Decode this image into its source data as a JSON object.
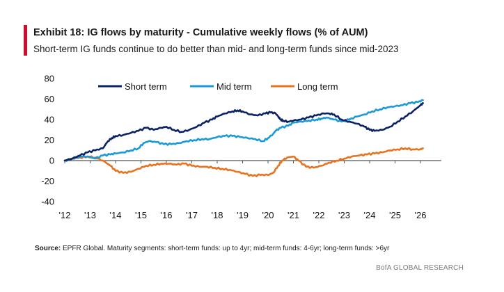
{
  "header": {
    "title": "Exhibit 18: IG flows by maturity - Cumulative weekly flows (% of AUM)",
    "subtitle": "Short-term IG funds continue to do better than mid- and long-term funds since mid-2023"
  },
  "source": {
    "label": "Source:",
    "text": " EPFR Global. Maturity segments: short-term funds: up to 4yr; mid-term funds: 4-6yr; long-term funds: >6yr"
  },
  "footer": {
    "brand": "BofA GLOBAL RESEARCH"
  },
  "colors": {
    "accent": "#c8102e",
    "short": "#0b2265",
    "mid": "#1a9ad6",
    "long": "#e8731e",
    "axis": "#555555"
  },
  "chart_data": {
    "type": "line",
    "title": "Exhibit 18: IG flows by maturity - Cumulative weekly flows (% of AUM)",
    "xlabel": "",
    "ylabel": "",
    "xlim": [
      2012,
      2026.2
    ],
    "ylim": [
      -40,
      80
    ],
    "yticks": [
      80,
      60,
      40,
      20,
      0,
      -20,
      -40
    ],
    "ytick_labels": [
      "80",
      "60",
      "40",
      "20",
      "0",
      "-20",
      "-40"
    ],
    "xticks": [
      2012,
      2013,
      2014,
      2015,
      2016,
      2017,
      2018,
      2019,
      2020,
      2021,
      2022,
      2023,
      2024,
      2025,
      2026
    ],
    "xtick_labels": [
      "'12",
      "'13",
      "'14",
      "'15",
      "'16",
      "'17",
      "'18",
      "'19",
      "'20",
      "'21",
      "'22",
      "'23",
      "'24",
      "'25",
      "'26"
    ],
    "grid": false,
    "legend_position": "top",
    "series": [
      {
        "name": "Short term",
        "color": "#0b2265",
        "x": [
          2012.0,
          2012.3,
          2012.6,
          2012.9,
          2013.2,
          2013.5,
          2013.7,
          2013.85,
          2014.0,
          2014.3,
          2014.6,
          2014.9,
          2015.2,
          2015.5,
          2015.8,
          2016.0,
          2016.3,
          2016.6,
          2016.9,
          2017.2,
          2017.5,
          2017.8,
          2018.0,
          2018.3,
          2018.6,
          2018.8,
          2019.0,
          2019.3,
          2019.6,
          2019.9,
          2020.1,
          2020.3,
          2020.4,
          2020.5,
          2020.6,
          2020.8,
          2021.0,
          2021.3,
          2021.6,
          2021.9,
          2022.2,
          2022.4,
          2022.6,
          2022.9,
          2023.2,
          2023.5,
          2023.8,
          2024.0,
          2024.2,
          2024.5,
          2024.8,
          2025.1,
          2025.4,
          2025.7,
          2026.0,
          2026.1
        ],
        "y": [
          0,
          2,
          5,
          8,
          10,
          12,
          19,
          22,
          24,
          25,
          27,
          29,
          32,
          30,
          32,
          33,
          30,
          28,
          30,
          33,
          37,
          40,
          43,
          46,
          48,
          49,
          48,
          45,
          44,
          46,
          47,
          46,
          43,
          40,
          39,
          38,
          39,
          40,
          42,
          44,
          46,
          46,
          45,
          40,
          38,
          36,
          33,
          30,
          29,
          30,
          33,
          38,
          43,
          48,
          54,
          56
        ]
      },
      {
        "name": "Mid term",
        "color": "#1a9ad6",
        "x": [
          2012.0,
          2012.3,
          2012.6,
          2012.9,
          2013.2,
          2013.5,
          2013.8,
          2014.0,
          2014.3,
          2014.6,
          2014.9,
          2015.1,
          2015.3,
          2015.6,
          2015.9,
          2016.2,
          2016.5,
          2016.8,
          2017.1,
          2017.4,
          2017.7,
          2018.0,
          2018.3,
          2018.6,
          2018.9,
          2019.2,
          2019.5,
          2019.8,
          2020.0,
          2020.2,
          2020.3,
          2020.5,
          2020.8,
          2021.0,
          2021.3,
          2021.6,
          2021.9,
          2022.1,
          2022.3,
          2022.6,
          2022.9,
          2023.2,
          2023.5,
          2023.8,
          2024.1,
          2024.4,
          2024.7,
          2025.0,
          2025.3,
          2025.6,
          2025.9,
          2026.1
        ],
        "y": [
          0,
          2,
          4,
          4,
          2,
          5,
          6,
          7,
          8,
          10,
          12,
          17,
          19,
          18,
          16,
          16,
          17,
          19,
          20,
          21,
          21,
          23,
          24,
          24,
          23,
          22,
          21,
          19,
          22,
          26,
          29,
          32,
          34,
          37,
          38,
          39,
          40,
          41,
          42,
          40,
          38,
          40,
          43,
          45,
          48,
          50,
          52,
          53,
          54,
          56,
          57,
          59
        ]
      },
      {
        "name": "Long term",
        "color": "#e8731e",
        "x": [
          2012.0,
          2012.3,
          2012.6,
          2012.9,
          2013.2,
          2013.5,
          2013.8,
          2014.0,
          2014.3,
          2014.6,
          2014.9,
          2015.2,
          2015.5,
          2015.8,
          2016.1,
          2016.4,
          2016.7,
          2017.0,
          2017.3,
          2017.6,
          2017.9,
          2018.2,
          2018.5,
          2018.8,
          2019.1,
          2019.4,
          2019.7,
          2020.0,
          2020.2,
          2020.4,
          2020.55,
          2020.75,
          2021.0,
          2021.2,
          2021.5,
          2021.8,
          2022.1,
          2022.4,
          2022.7,
          2023.0,
          2023.3,
          2023.6,
          2023.9,
          2024.2,
          2024.5,
          2024.8,
          2025.1,
          2025.4,
          2025.7,
          2026.0,
          2026.1
        ],
        "y": [
          0,
          2,
          3,
          4,
          3,
          0,
          -5,
          -10,
          -12,
          -11,
          -8,
          -5,
          -4,
          -3,
          -3,
          -4,
          -3,
          -5,
          -6,
          -6,
          -7,
          -8,
          -9,
          -11,
          -13,
          -15,
          -14,
          -14,
          -12,
          -5,
          0,
          3,
          4,
          0,
          -6,
          -7,
          -5,
          -2,
          0,
          2,
          4,
          5,
          6,
          7,
          8,
          10,
          11,
          12,
          11,
          11,
          12
        ]
      }
    ]
  }
}
